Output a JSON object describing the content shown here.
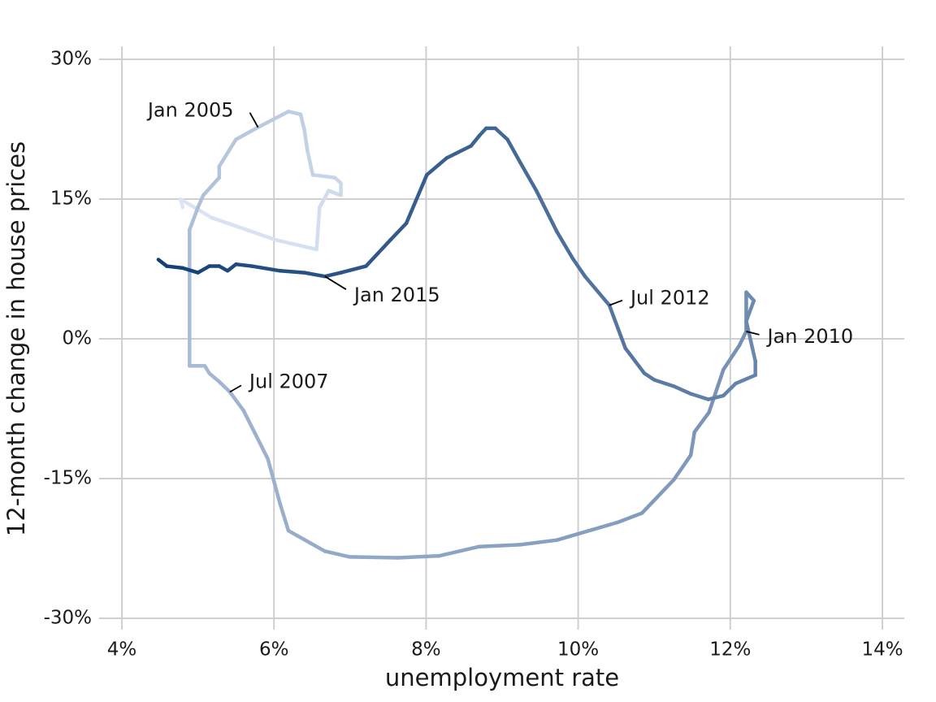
{
  "chart_data": {
    "type": "connected-scatter",
    "x_label": "unemployment rate",
    "y_label": "12-month change in house prices",
    "x": [
      4.8,
      4.77,
      5.18,
      6.03,
      6.56,
      6.6,
      6.72,
      6.88,
      6.88,
      6.8,
      6.51,
      6.44,
      6.4,
      6.35,
      6.19,
      5.98,
      5.79,
      5.5,
      5.28,
      5.28,
      5.07,
      5.0,
      4.89,
      4.89,
      5.09,
      5.15,
      5.28,
      5.42,
      5.6,
      5.92,
      6.08,
      6.19,
      6.67,
      6.99,
      7.63,
      8.17,
      8.7,
      9.24,
      9.72,
      10.52,
      10.84,
      11.26,
      11.48,
      11.53,
      11.72,
      11.91,
      12.12,
      12.21,
      12.21,
      12.31,
      12.21,
      12.33,
      12.33,
      12.07,
      11.91,
      11.71,
      11.48,
      11.26,
      11.0,
      10.87,
      10.62,
      10.41,
      10.09,
      9.93,
      9.72,
      9.45,
      9.24,
      9.07,
      8.91,
      8.79,
      8.7,
      8.59,
      8.27,
      8.01,
      7.74,
      7.53,
      7.37,
      7.21,
      6.88,
      6.67,
      6.4,
      6.08,
      5.71,
      5.5,
      5.39,
      5.28,
      5.15,
      5.0,
      4.8,
      4.59,
      4.48
    ],
    "y": [
      14.1,
      15.0,
      13.0,
      10.6,
      9.6,
      14.1,
      15.9,
      15.4,
      16.7,
      17.3,
      17.6,
      20.2,
      22.4,
      24.1,
      24.4,
      23.5,
      22.7,
      21.4,
      18.5,
      17.3,
      15.4,
      14.1,
      11.7,
      -2.9,
      -2.9,
      -3.7,
      -4.6,
      -5.7,
      -7.7,
      -12.9,
      -17.7,
      -20.6,
      -22.8,
      -23.4,
      -23.5,
      -23.3,
      -22.3,
      -22.1,
      -21.6,
      -19.7,
      -18.7,
      -15.1,
      -12.5,
      -10.0,
      -7.9,
      -3.3,
      -0.7,
      0.8,
      5.0,
      4.1,
      1.9,
      -2.4,
      -3.9,
      -4.8,
      -6.1,
      -6.5,
      -5.9,
      -5.1,
      -4.4,
      -3.7,
      -1.0,
      3.6,
      6.7,
      8.6,
      11.5,
      15.9,
      18.9,
      21.4,
      22.6,
      22.6,
      21.8,
      20.7,
      19.4,
      17.6,
      12.4,
      10.6,
      9.2,
      7.8,
      7.1,
      6.7,
      7.1,
      7.3,
      7.8,
      8.0,
      7.3,
      7.8,
      7.8,
      7.1,
      7.6,
      7.8,
      8.5
    ],
    "colors": [
      "#dce6f5",
      "#123f76"
    ],
    "annotations": [
      {
        "text": "Jan 2005",
        "x": 5.79,
        "y": 22.7
      },
      {
        "text": "Jul 2007",
        "x": 5.42,
        "y": -5.7
      },
      {
        "text": "Jan 2010",
        "x": 12.21,
        "y": 0.8
      },
      {
        "text": "Jul 2012",
        "x": 10.41,
        "y": 3.6
      },
      {
        "text": "Jan 2015",
        "x": 6.67,
        "y": 6.7
      }
    ],
    "xlim": [
      4,
      14
    ],
    "xticks": [
      {
        "value": 4,
        "label": "4%"
      },
      {
        "value": 6,
        "label": "6%"
      },
      {
        "value": 8,
        "label": "8%"
      },
      {
        "value": 10,
        "label": "10%"
      },
      {
        "value": 12,
        "label": "12%"
      },
      {
        "value": 14,
        "label": "14%"
      }
    ],
    "ylim": [
      -30,
      30
    ],
    "yticks": [
      {
        "value": -30,
        "label": "-30%"
      },
      {
        "value": -15,
        "label": "-15%"
      },
      {
        "value": 0,
        "label": "0%"
      },
      {
        "value": 15,
        "label": "15%"
      },
      {
        "value": 30,
        "label": "30%"
      }
    ],
    "grid": true
  }
}
